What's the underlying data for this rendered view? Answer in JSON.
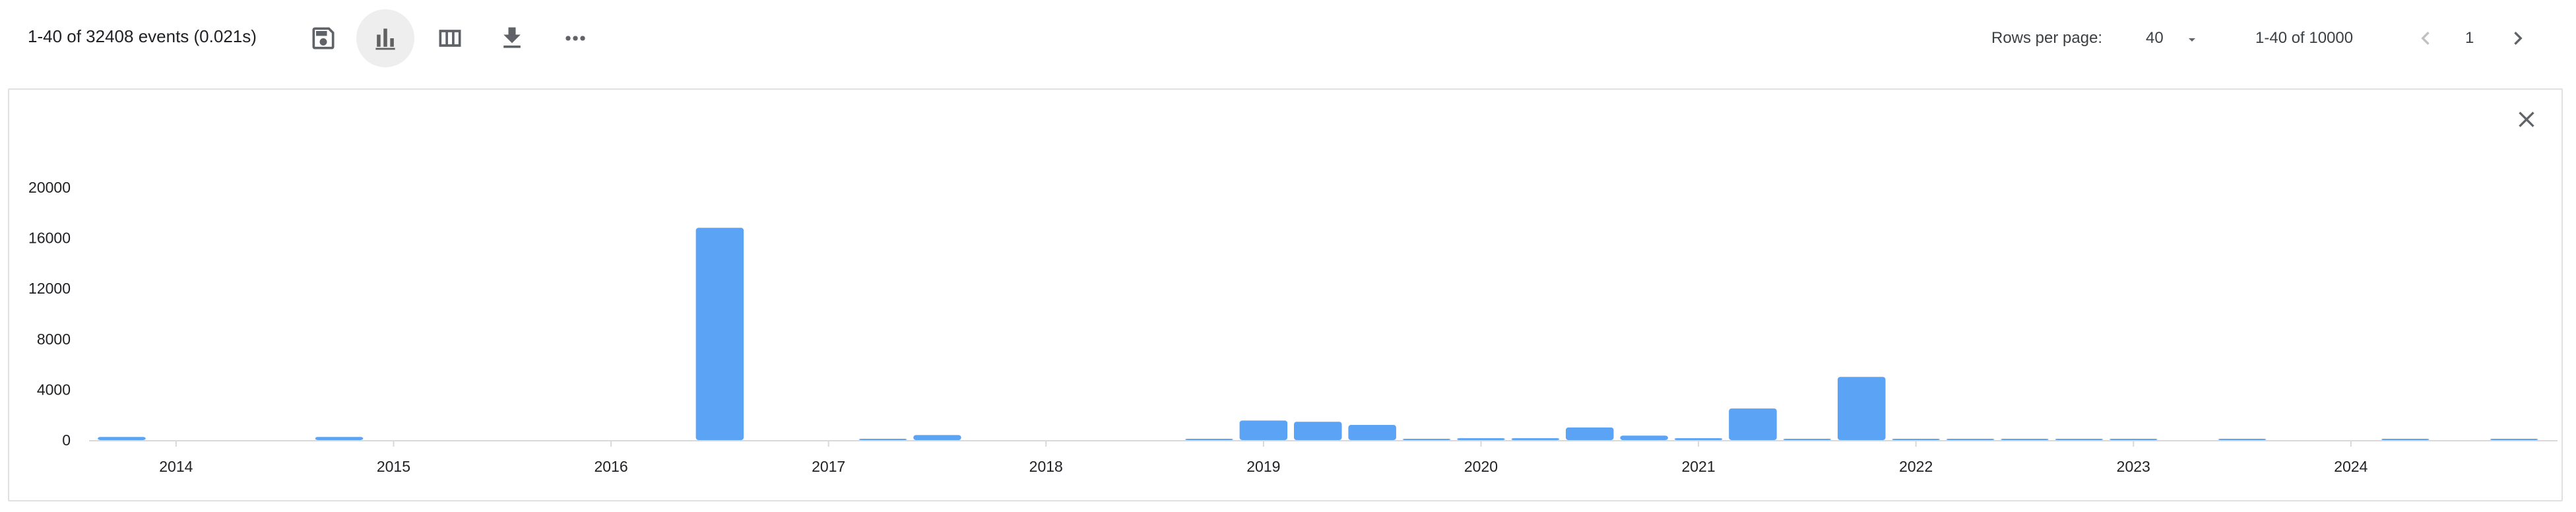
{
  "toolbar": {
    "events_summary": "1-40 of 32408 events (0.021s)",
    "icons": [
      "save-icon",
      "bar-chart-icon",
      "columns-icon",
      "download-icon",
      "more-horiz-icon"
    ],
    "active_icon": "bar-chart-icon"
  },
  "pagination": {
    "rows_per_page_label": "Rows per page:",
    "rows_per_page_value": "40",
    "range_label": "1-40 of 10000",
    "page_number": "1"
  },
  "colors": {
    "bar": "#5ba3f5",
    "axis": "#d9d9d9",
    "icon": "#5f6368",
    "disabled_icon": "#c0c0c0"
  },
  "chart_data": {
    "type": "bar",
    "title": "",
    "xlabel": "",
    "ylabel": "",
    "ylim": [
      0,
      20000
    ],
    "yticks": [
      0,
      4000,
      8000,
      12000,
      16000,
      20000
    ],
    "xlim": [
      2013.6,
      2024.95
    ],
    "xticks": [
      {
        "value": 2014,
        "label": "2014"
      },
      {
        "value": 2015,
        "label": "2015"
      },
      {
        "value": 2016,
        "label": "2016"
      },
      {
        "value": 2017,
        "label": "2017"
      },
      {
        "value": 2018,
        "label": "2018"
      },
      {
        "value": 2019,
        "label": "2019"
      },
      {
        "value": 2020,
        "label": "2020"
      },
      {
        "value": 2021,
        "label": "2021"
      },
      {
        "value": 2022,
        "label": "2022"
      },
      {
        "value": 2023,
        "label": "2023"
      },
      {
        "value": 2024,
        "label": "2024"
      }
    ],
    "bar_width_years": 0.22,
    "bars": [
      {
        "x": 2013.75,
        "y": 250
      },
      {
        "x": 2014.75,
        "y": 250
      },
      {
        "x": 2016.5,
        "y": 16800
      },
      {
        "x": 2017.25,
        "y": 40
      },
      {
        "x": 2017.5,
        "y": 400
      },
      {
        "x": 2018.75,
        "y": 40
      },
      {
        "x": 2019.0,
        "y": 1550
      },
      {
        "x": 2019.25,
        "y": 1450
      },
      {
        "x": 2019.5,
        "y": 1200
      },
      {
        "x": 2019.75,
        "y": 40
      },
      {
        "x": 2020.0,
        "y": 150
      },
      {
        "x": 2020.25,
        "y": 150
      },
      {
        "x": 2020.5,
        "y": 1000
      },
      {
        "x": 2020.75,
        "y": 350
      },
      {
        "x": 2021.0,
        "y": 150
      },
      {
        "x": 2021.25,
        "y": 2500
      },
      {
        "x": 2021.5,
        "y": 40
      },
      {
        "x": 2021.75,
        "y": 5000
      },
      {
        "x": 2022.0,
        "y": 100
      },
      {
        "x": 2022.25,
        "y": 80
      },
      {
        "x": 2022.5,
        "y": 40
      },
      {
        "x": 2022.75,
        "y": 40
      },
      {
        "x": 2023.0,
        "y": 30
      },
      {
        "x": 2023.5,
        "y": 30
      },
      {
        "x": 2024.25,
        "y": 30
      },
      {
        "x": 2024.75,
        "y": 30
      }
    ]
  }
}
